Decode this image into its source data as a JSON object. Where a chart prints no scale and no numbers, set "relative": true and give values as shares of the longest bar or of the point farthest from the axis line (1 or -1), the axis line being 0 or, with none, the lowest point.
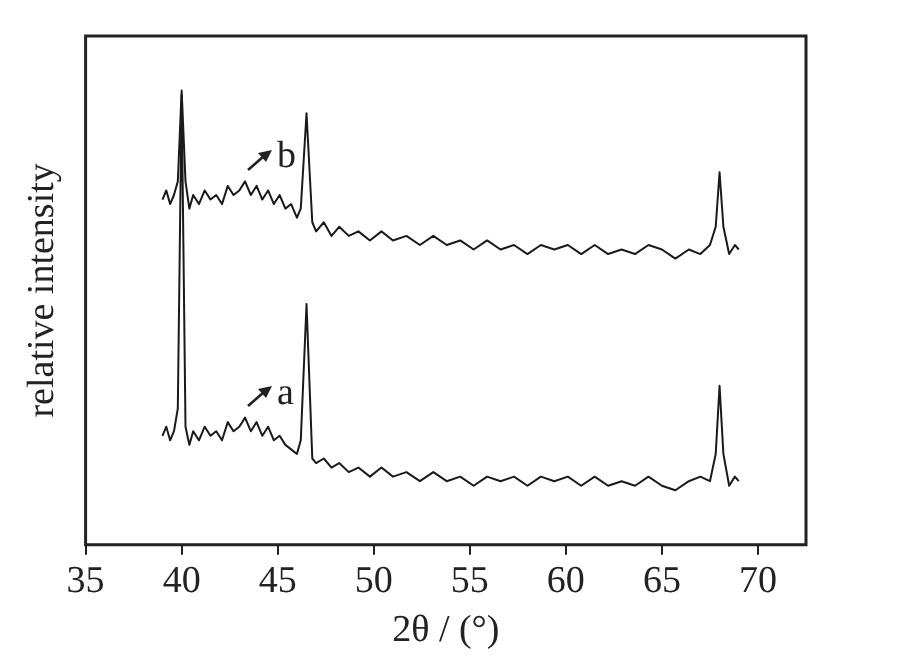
{
  "chart_data": {
    "type": "line",
    "relative": true,
    "xlabel": "2θ / (°)",
    "ylabel": "relative intensity",
    "xlim": [
      35,
      72.5
    ],
    "xticks": [
      35,
      40,
      45,
      50,
      55,
      60,
      65,
      70
    ],
    "grid": false,
    "legend": false,
    "marker": "none",
    "line_style": "solid",
    "series": [
      {
        "color": "#1a1a1a",
        "x": [
          39,
          39.2,
          39.4,
          39.6,
          39.8,
          40,
          40.2,
          40.4,
          40.6,
          40.9,
          41.2,
          41.5,
          41.8,
          42.1,
          42.4,
          42.7,
          43,
          43.3,
          43.6,
          43.9,
          44.2,
          44.5,
          44.8,
          45.1,
          45.4,
          45.7,
          46,
          46.2,
          46.5,
          46.8,
          47,
          47.4,
          47.8,
          48.2,
          48.7,
          49.2,
          49.8,
          50.4,
          51,
          51.7,
          52.4,
          53.1,
          53.8,
          54.5,
          55.2,
          55.9,
          56.6,
          57.3,
          58,
          58.7,
          59.4,
          60.1,
          60.8,
          61.5,
          62.2,
          62.9,
          63.6,
          64.3,
          65,
          65.7,
          66.4,
          67,
          67.5,
          67.8,
          68,
          68.2,
          68.5,
          68.8,
          69
        ],
        "values": [
          0.76,
          0.78,
          0.75,
          0.77,
          0.8,
          1,
          0.8,
          0.74,
          0.77,
          0.75,
          0.78,
          0.76,
          0.77,
          0.75,
          0.79,
          0.77,
          0.78,
          0.8,
          0.77,
          0.79,
          0.76,
          0.78,
          0.75,
          0.77,
          0.74,
          0.75,
          0.72,
          0.74,
          0.95,
          0.71,
          0.69,
          0.71,
          0.68,
          0.7,
          0.68,
          0.69,
          0.67,
          0.69,
          0.67,
          0.68,
          0.66,
          0.68,
          0.66,
          0.67,
          0.65,
          0.67,
          0.65,
          0.66,
          0.64,
          0.66,
          0.65,
          0.66,
          0.64,
          0.66,
          0.64,
          0.65,
          0.64,
          0.66,
          0.65,
          0.63,
          0.65,
          0.64,
          0.66,
          0.7,
          0.82,
          0.7,
          0.64,
          0.66,
          0.65
        ]
      },
      {
        "color": "#1a1a1a",
        "x": [
          39,
          39.2,
          39.4,
          39.6,
          39.8,
          40,
          40.2,
          40.4,
          40.6,
          40.9,
          41.2,
          41.5,
          41.8,
          42.1,
          42.4,
          42.7,
          43,
          43.3,
          43.6,
          43.9,
          44.2,
          44.5,
          44.8,
          45.1,
          45.4,
          45.7,
          46,
          46.2,
          46.5,
          46.8,
          47,
          47.4,
          47.8,
          48.2,
          48.7,
          49.2,
          49.8,
          50.4,
          51,
          51.7,
          52.4,
          53.1,
          53.8,
          54.5,
          55.2,
          55.9,
          56.6,
          57.3,
          58,
          58.7,
          59.4,
          60.1,
          60.8,
          61.5,
          62.2,
          62.9,
          63.6,
          64.3,
          65,
          65.7,
          66.4,
          67,
          67.5,
          67.8,
          68,
          68.2,
          68.5,
          68.8,
          69
        ],
        "values": [
          0.24,
          0.26,
          0.23,
          0.25,
          0.3,
          0.99,
          0.26,
          0.22,
          0.25,
          0.23,
          0.26,
          0.24,
          0.25,
          0.23,
          0.27,
          0.25,
          0.26,
          0.28,
          0.25,
          0.27,
          0.24,
          0.26,
          0.23,
          0.24,
          0.22,
          0.21,
          0.2,
          0.23,
          0.53,
          0.19,
          0.18,
          0.19,
          0.17,
          0.18,
          0.16,
          0.17,
          0.15,
          0.17,
          0.15,
          0.16,
          0.14,
          0.16,
          0.14,
          0.15,
          0.13,
          0.15,
          0.14,
          0.15,
          0.13,
          0.15,
          0.14,
          0.15,
          0.13,
          0.15,
          0.13,
          0.14,
          0.13,
          0.15,
          0.13,
          0.12,
          0.14,
          0.15,
          0.14,
          0.2,
          0.35,
          0.2,
          0.13,
          0.15,
          0.14
        ]
      }
    ],
    "annotations": [
      {
        "text": "b",
        "x": 43.3,
        "y": 0.8
      },
      {
        "text": "a",
        "x": 43.3,
        "y": 0.28
      }
    ]
  }
}
